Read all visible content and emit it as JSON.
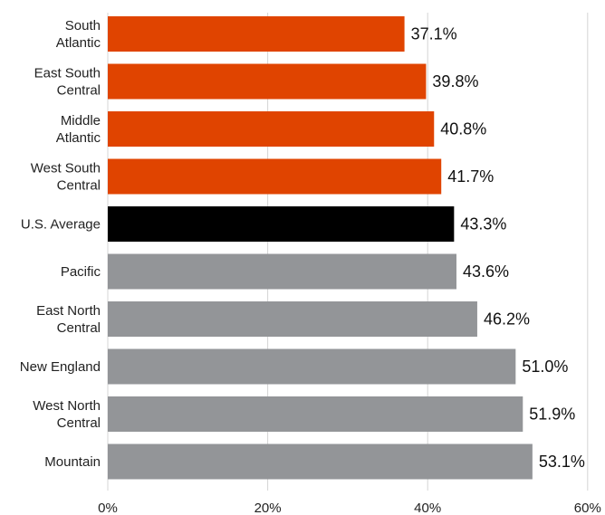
{
  "chart_data": {
    "type": "bar",
    "orientation": "horizontal",
    "title": "",
    "xlabel": "",
    "ylabel": "",
    "xlim": [
      0,
      60
    ],
    "grid": true,
    "x_ticks": [
      {
        "value": 0,
        "label": "0%"
      },
      {
        "value": 20,
        "label": "20%"
      },
      {
        "value": 40,
        "label": "40%"
      },
      {
        "value": 60,
        "label": "60%"
      }
    ],
    "categories": [
      {
        "lines": [
          "South",
          "Atlantic"
        ],
        "value": 37.1,
        "label": "37.1%",
        "color": "#e04400"
      },
      {
        "lines": [
          "East South",
          "Central"
        ],
        "value": 39.8,
        "label": "39.8%",
        "color": "#e04400"
      },
      {
        "lines": [
          "Middle",
          "Atlantic"
        ],
        "value": 40.8,
        "label": "40.8%",
        "color": "#e04400"
      },
      {
        "lines": [
          "West South",
          "Central"
        ],
        "value": 41.7,
        "label": "41.7%",
        "color": "#e04400"
      },
      {
        "lines": [
          "U.S. Average"
        ],
        "value": 43.3,
        "label": "43.3%",
        "color": "#000000"
      },
      {
        "lines": [
          "Pacific"
        ],
        "value": 43.6,
        "label": "43.6%",
        "color": "#939598"
      },
      {
        "lines": [
          "East North",
          "Central"
        ],
        "value": 46.2,
        "label": "46.2%",
        "color": "#939598"
      },
      {
        "lines": [
          "New England"
        ],
        "value": 51.0,
        "label": "51.0%",
        "color": "#939598"
      },
      {
        "lines": [
          "West North",
          "Central"
        ],
        "value": 51.9,
        "label": "51.9%",
        "color": "#939598"
      },
      {
        "lines": [
          "Mountain"
        ],
        "value": 53.1,
        "label": "53.1%",
        "color": "#939598"
      }
    ]
  }
}
